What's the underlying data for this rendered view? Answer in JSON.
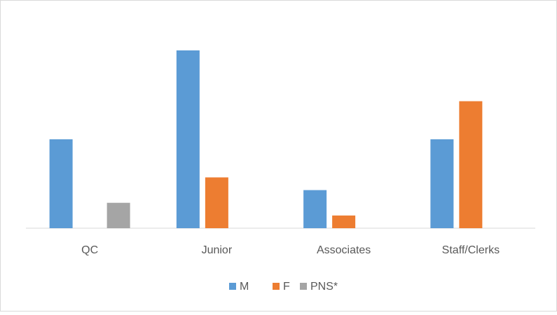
{
  "chart_data": {
    "type": "bar",
    "categories": [
      "QC",
      "Junior",
      "Associates",
      "Staff/Clerks"
    ],
    "series": [
      {
        "name": "M",
        "color": "#5b9bd5",
        "values": [
          7,
          14,
          3,
          7
        ]
      },
      {
        "name": "F",
        "color": "#ed7d31",
        "values": [
          0,
          4,
          1,
          10
        ]
      },
      {
        "name": "PNS*",
        "color": "#a5a5a5",
        "values": [
          2,
          0,
          0,
          0
        ]
      }
    ],
    "ylim": [
      0,
      14
    ],
    "legend": "bottom"
  }
}
